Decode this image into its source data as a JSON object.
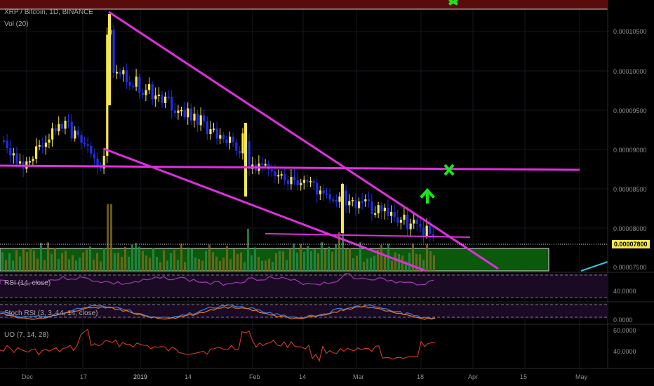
{
  "chart": {
    "symbol_title": "XRP / Bitcoin, 1D, BINANCE",
    "volume_label": "Vol (20)",
    "last_price": "0.00007800"
  },
  "indicators": {
    "rsi_label": "RSI (14, close)",
    "stoch_label": "Stoch RSI (3, 3, 14, 14, close)",
    "uo_label": "UO (7, 14, 28)"
  },
  "price_axis": [
    "0.00010500",
    "0.00010000",
    "0.00009500",
    "0.00009000",
    "0.00008500",
    "0.00008000",
    "0.00007500"
  ],
  "rsi_axis": [
    "40.0000"
  ],
  "stoch_axis": [
    "0.0000"
  ],
  "uo_axis": [
    "60.0000",
    "40.0000"
  ],
  "time_axis": [
    "Dec",
    "17",
    "2019",
    "14",
    "Feb",
    "14",
    "Mar",
    "18",
    "Apr",
    "15",
    "May"
  ],
  "colors": {
    "bull": "#f7e84a",
    "bear": "#1f2fe8",
    "trendline": "#e02ee0",
    "marker_green": "#17e817",
    "zone_green": "#0b5a0b",
    "zone_red": "#5a0b0b",
    "rsi_line": "#a03fb0",
    "stoch_k": "#3f7de0",
    "stoch_d": "#e07a2a",
    "uo_line": "#d63a2a"
  },
  "icons": [
    "up-arrow-icon",
    "cross-marker-icon"
  ]
}
